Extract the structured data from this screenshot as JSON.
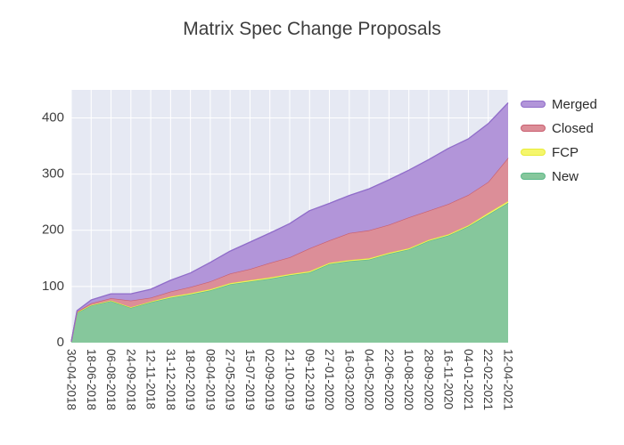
{
  "chart_data": {
    "type": "area",
    "stacked": true,
    "title": "Matrix Spec Change Proposals",
    "x_dates": [
      "30-04-2018",
      "14-05-2018",
      "18-06-2018",
      "06-08-2018",
      "24-09-2018",
      "12-11-2018",
      "31-12-2018",
      "18-02-2019",
      "08-04-2019",
      "27-05-2019",
      "15-07-2019",
      "02-09-2019",
      "21-10-2019",
      "09-12-2019",
      "27-01-2020",
      "16-03-2020",
      "04-05-2020",
      "22-06-2020",
      "10-08-2020",
      "28-09-2020",
      "16-11-2020",
      "04-01-2021",
      "22-02-2021",
      "12-04-2021"
    ],
    "x_days": [
      0,
      14,
      49,
      98,
      147,
      196,
      245,
      294,
      343,
      392,
      441,
      490,
      539,
      588,
      637,
      686,
      735,
      784,
      833,
      882,
      931,
      980,
      1029,
      1078
    ],
    "series": [
      {
        "name": "New",
        "fill": "#86c79c",
        "line": "#5cb88a",
        "values": [
          2,
          53,
          66,
          74,
          62,
          72,
          80,
          86,
          93,
          104,
          109,
          114,
          120,
          125,
          140,
          145,
          148,
          158,
          166,
          181,
          191,
          207,
          228,
          249
        ]
      },
      {
        "name": "FCP",
        "fill": "#f5f66c",
        "line": "#e8ec3a",
        "values": [
          0,
          1,
          1,
          1,
          1,
          1,
          2,
          2,
          2,
          2,
          2,
          2,
          2,
          2,
          2,
          2,
          2,
          2,
          2,
          2,
          2,
          2,
          3,
          3
        ]
      },
      {
        "name": "Closed",
        "fill": "#dc8e98",
        "line": "#c95f70",
        "values": [
          0,
          1,
          3,
          4,
          12,
          7,
          9,
          11,
          14,
          17,
          20,
          26,
          30,
          41,
          40,
          48,
          50,
          50,
          55,
          52,
          54,
          54,
          55,
          77
        ]
      },
      {
        "name": "Merged",
        "fill": "#b295d9",
        "line": "#8f6cc9",
        "values": [
          0,
          2,
          6,
          8,
          12,
          15,
          20,
          25,
          34,
          40,
          48,
          53,
          60,
          67,
          66,
          67,
          74,
          80,
          84,
          91,
          99,
          100,
          104,
          98
        ]
      }
    ],
    "legend_order": [
      "Merged",
      "Closed",
      "FCP",
      "New"
    ],
    "xticks": {
      "labels": [
        "30-04-2018",
        "18-06-2018",
        "06-08-2018",
        "24-09-2018",
        "12-11-2018",
        "31-12-2018",
        "18-02-2019",
        "08-04-2019",
        "27-05-2019",
        "15-07-2019",
        "02-09-2019",
        "21-10-2019",
        "09-12-2019",
        "27-01-2020",
        "16-03-2020",
        "04-05-2020",
        "22-06-2020",
        "10-08-2020",
        "28-09-2020",
        "16-11-2020",
        "04-01-2021",
        "22-02-2021",
        "12-04-2021"
      ],
      "days": [
        0,
        49,
        98,
        147,
        196,
        245,
        294,
        343,
        392,
        441,
        490,
        539,
        588,
        637,
        686,
        735,
        784,
        833,
        882,
        931,
        980,
        1029,
        1078
      ],
      "angle": 90
    },
    "yticks": [
      0,
      100,
      200,
      300,
      400
    ],
    "ylim": [
      0,
      450
    ],
    "xlabel": "",
    "ylabel": "",
    "grid": true,
    "legend_position": "right",
    "plot_bg": "#e6e9f3",
    "grid_color": "#ffffff",
    "axis_text_color": "#3f3f3f",
    "title_color": "#3d3d3d"
  }
}
